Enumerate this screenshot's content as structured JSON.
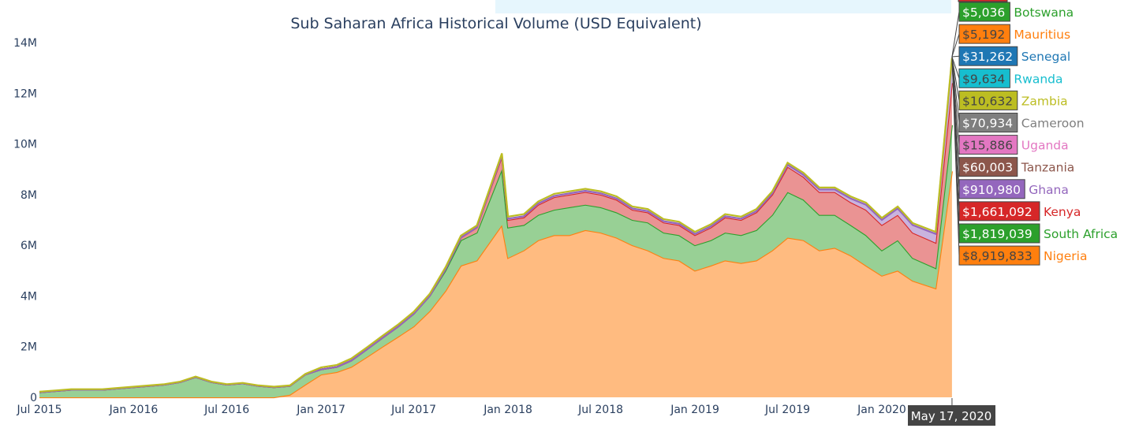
{
  "chart_data": {
    "type": "area",
    "stacked": true,
    "title": "Sub Saharan Africa Historical Volume (USD Equivalent)",
    "xlabel": "",
    "ylabel": "",
    "ylim": [
      0,
      14000000
    ],
    "y_ticks": [
      {
        "v": 0,
        "label": "0"
      },
      {
        "v": 2000000,
        "label": "2M"
      },
      {
        "v": 4000000,
        "label": "4M"
      },
      {
        "v": 6000000,
        "label": "6M"
      },
      {
        "v": 8000000,
        "label": "8M"
      },
      {
        "v": 10000000,
        "label": "10M"
      },
      {
        "v": 12000000,
        "label": "12M"
      },
      {
        "v": 14000000,
        "label": "14M"
      }
    ],
    "x_ticks": [
      {
        "v": "2015-07-01",
        "label": "Jul 2015"
      },
      {
        "v": "2016-01-01",
        "label": "Jan 2016"
      },
      {
        "v": "2016-07-01",
        "label": "Jul 2016"
      },
      {
        "v": "2017-01-01",
        "label": "Jan 2017"
      },
      {
        "v": "2017-07-01",
        "label": "Jul 2017"
      },
      {
        "v": "2018-01-01",
        "label": "Jan 2018"
      },
      {
        "v": "2018-07-01",
        "label": "Jul 2018"
      },
      {
        "v": "2019-01-01",
        "label": "Jan 2019"
      },
      {
        "v": "2019-07-01",
        "label": "Jul 2019"
      },
      {
        "v": "2020-01-01",
        "label": "Jan 2020"
      }
    ],
    "grid": false,
    "unit_note_values_in_millions": true,
    "x": [
      "2015-07-01",
      "2015-08-01",
      "2015-09-01",
      "2015-10-01",
      "2015-11-01",
      "2015-12-01",
      "2016-01-01",
      "2016-02-01",
      "2016-03-01",
      "2016-04-01",
      "2016-05-01",
      "2016-06-01",
      "2016-07-01",
      "2016-08-01",
      "2016-09-01",
      "2016-10-01",
      "2016-11-01",
      "2016-12-01",
      "2017-01-01",
      "2017-02-01",
      "2017-03-01",
      "2017-04-01",
      "2017-05-01",
      "2017-06-01",
      "2017-07-01",
      "2017-08-01",
      "2017-09-01",
      "2017-10-01",
      "2017-11-01",
      "2017-12-20",
      "2018-01-01",
      "2018-02-01",
      "2018-03-01",
      "2018-04-01",
      "2018-05-01",
      "2018-06-01",
      "2018-07-01",
      "2018-08-01",
      "2018-09-01",
      "2018-10-01",
      "2018-11-01",
      "2018-12-01",
      "2019-01-01",
      "2019-02-01",
      "2019-03-01",
      "2019-04-01",
      "2019-05-01",
      "2019-06-01",
      "2019-07-01",
      "2019-08-01",
      "2019-09-01",
      "2019-10-01",
      "2019-11-01",
      "2019-12-01",
      "2020-01-01",
      "2020-02-01",
      "2020-03-01",
      "2020-04-15",
      "2020-05-17"
    ],
    "series": [
      {
        "name": "Nigeria",
        "color": "#ff7f0e",
        "fill": "#ffbb80",
        "values": [
          0,
          0,
          0,
          0,
          0,
          0,
          0,
          0,
          0,
          0,
          0,
          0,
          0,
          0,
          0,
          0,
          0.1,
          0.5,
          0.9,
          1.0,
          1.2,
          1.6,
          2.0,
          2.4,
          2.8,
          3.4,
          4.2,
          5.2,
          5.4,
          6.8,
          5.5,
          5.8,
          6.2,
          6.4,
          6.4,
          6.6,
          6.5,
          6.3,
          6.0,
          5.8,
          5.5,
          5.4,
          5.0,
          5.2,
          5.4,
          5.3,
          5.4,
          5.8,
          6.3,
          6.2,
          5.8,
          5.9,
          5.6,
          5.2,
          4.8,
          5.0,
          4.6,
          4.3,
          8.919833
        ]
      },
      {
        "name": "South Africa",
        "color": "#2ca02c",
        "fill": "#98d095",
        "values": [
          0.2,
          0.25,
          0.3,
          0.3,
          0.3,
          0.35,
          0.4,
          0.45,
          0.5,
          0.6,
          0.8,
          0.6,
          0.5,
          0.55,
          0.45,
          0.4,
          0.35,
          0.4,
          0.2,
          0.2,
          0.25,
          0.3,
          0.35,
          0.4,
          0.5,
          0.6,
          0.8,
          1.0,
          1.1,
          2.2,
          1.2,
          1.0,
          1.0,
          1.0,
          1.1,
          1.0,
          1.0,
          1.0,
          1.0,
          1.1,
          1.0,
          1.0,
          1.0,
          1.0,
          1.1,
          1.1,
          1.2,
          1.4,
          1.8,
          1.6,
          1.4,
          1.3,
          1.2,
          1.2,
          1.0,
          1.2,
          0.9,
          0.8,
          1.819039
        ]
      },
      {
        "name": "Kenya",
        "color": "#d62728",
        "fill": "#ea9393",
        "values": [
          0,
          0,
          0,
          0,
          0,
          0,
          0,
          0,
          0,
          0,
          0,
          0,
          0,
          0,
          0,
          0,
          0,
          0,
          0,
          0,
          0,
          0,
          0,
          0,
          0,
          0,
          0.05,
          0.1,
          0.2,
          0.5,
          0.3,
          0.3,
          0.4,
          0.5,
          0.5,
          0.5,
          0.5,
          0.5,
          0.4,
          0.4,
          0.4,
          0.4,
          0.4,
          0.5,
          0.6,
          0.6,
          0.7,
          0.8,
          1.0,
          0.9,
          0.9,
          0.9,
          0.9,
          1.0,
          1.0,
          1.0,
          1.0,
          1.0,
          1.661092
        ]
      },
      {
        "name": "Ghana",
        "color": "#9467bd",
        "fill": "#c9b3de",
        "values": [
          0,
          0,
          0,
          0,
          0,
          0,
          0,
          0,
          0,
          0,
          0,
          0,
          0,
          0,
          0,
          0,
          0,
          0,
          0,
          0,
          0,
          0,
          0,
          0,
          0,
          0,
          0,
          0,
          0,
          0.05,
          0.05,
          0.05,
          0.05,
          0.05,
          0.05,
          0.05,
          0.05,
          0.05,
          0.05,
          0.05,
          0.05,
          0.05,
          0.05,
          0.05,
          0.05,
          0.05,
          0.05,
          0.05,
          0.08,
          0.08,
          0.1,
          0.1,
          0.15,
          0.2,
          0.2,
          0.25,
          0.3,
          0.35,
          0.91098
        ]
      }
    ],
    "hover": {
      "date_label": "May 17, 2020",
      "items": [
        {
          "name": "Botswana",
          "value": "$5,036",
          "color": "#2ca02c",
          "text_dark": false
        },
        {
          "name": "Mauritius",
          "value": "$5,192",
          "color": "#ff7f0e",
          "text_dark": true
        },
        {
          "name": "Senegal",
          "value": "$31,262",
          "color": "#1f77b4",
          "text_dark": false
        },
        {
          "name": "Rwanda",
          "value": "$9,634",
          "color": "#17becf",
          "text_dark": true
        },
        {
          "name": "Zambia",
          "value": "$10,632",
          "color": "#bcbd22",
          "text_dark": true
        },
        {
          "name": "Cameroon",
          "value": "$70,934",
          "color": "#7f7f7f",
          "text_dark": false
        },
        {
          "name": "Uganda",
          "value": "$15,886",
          "color": "#e377c2",
          "text_dark": true
        },
        {
          "name": "Tanzania",
          "value": "$60,003",
          "color": "#8c564b",
          "text_dark": false
        },
        {
          "name": "Ghana",
          "value": "$910,980",
          "color": "#9467bd",
          "text_dark": false
        },
        {
          "name": "Kenya",
          "value": "$1,661,092",
          "color": "#d62728",
          "text_dark": false
        },
        {
          "name": "South Africa",
          "value": "$1,819,039",
          "color": "#2ca02c",
          "text_dark": false
        },
        {
          "name": "Nigeria",
          "value": "$8,919,833",
          "color": "#ff7f0e",
          "text_dark": true
        }
      ]
    }
  }
}
